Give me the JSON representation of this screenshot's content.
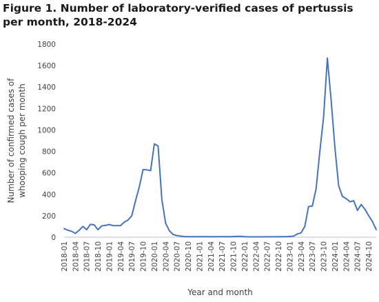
{
  "title": "Figure 1. Number of laboratory-verified cases of pertussis  per month, 2018-2024",
  "chart_data": {
    "type": "line",
    "title": "Figure 1. Number of laboratory-verified cases of pertussis  per month, 2018-2024",
    "xlabel": "Year and month",
    "ylabel_lines": [
      "Number of confirmed cases of",
      "whooping cough per month"
    ],
    "ylim": [
      0,
      1800
    ],
    "yticks": [
      0,
      200,
      400,
      600,
      800,
      1000,
      1200,
      1400,
      1600,
      1800
    ],
    "grid": false,
    "line_color": "#4472C4",
    "x_tick_labels": [
      "2018-01",
      "2018-04",
      "2018-07",
      "2018-10",
      "2019-01",
      "2019-04",
      "2019-07",
      "2019-10",
      "2020-01",
      "2020-04",
      "2020-07",
      "2020-10",
      "2021-01",
      "2021-04",
      "2021-07",
      "2021-10",
      "2022-01",
      "2022-04",
      "2022-07",
      "2022-10",
      "2023-01",
      "2023-04",
      "2023-07",
      "2023-10",
      "2024-01",
      "2024-04",
      "2024-07",
      "2024-10"
    ],
    "x": [
      "2018-01",
      "2018-02",
      "2018-03",
      "2018-04",
      "2018-05",
      "2018-06",
      "2018-07",
      "2018-08",
      "2018-09",
      "2018-10",
      "2018-11",
      "2018-12",
      "2019-01",
      "2019-02",
      "2019-03",
      "2019-04",
      "2019-05",
      "2019-06",
      "2019-07",
      "2019-08",
      "2019-09",
      "2019-10",
      "2019-11",
      "2019-12",
      "2020-01",
      "2020-02",
      "2020-03",
      "2020-04",
      "2020-05",
      "2020-06",
      "2020-07",
      "2020-08",
      "2020-09",
      "2020-10",
      "2020-11",
      "2020-12",
      "2021-01",
      "2021-02",
      "2021-03",
      "2021-04",
      "2021-05",
      "2021-06",
      "2021-07",
      "2021-08",
      "2021-09",
      "2021-10",
      "2021-11",
      "2021-12",
      "2022-01",
      "2022-02",
      "2022-03",
      "2022-04",
      "2022-05",
      "2022-06",
      "2022-07",
      "2022-08",
      "2022-09",
      "2022-10",
      "2022-11",
      "2022-12",
      "2023-01",
      "2023-02",
      "2023-03",
      "2023-04",
      "2023-05",
      "2023-06",
      "2023-07",
      "2023-08",
      "2023-09",
      "2023-10",
      "2023-11",
      "2023-12",
      "2024-01",
      "2024-02",
      "2024-03",
      "2024-04",
      "2024-05",
      "2024-06",
      "2024-07",
      "2024-08",
      "2024-09",
      "2024-10",
      "2024-11",
      "2024-12"
    ],
    "values": [
      80,
      65,
      55,
      35,
      65,
      100,
      70,
      120,
      115,
      70,
      105,
      110,
      118,
      108,
      108,
      108,
      140,
      160,
      200,
      340,
      470,
      630,
      628,
      620,
      870,
      850,
      350,
      130,
      60,
      25,
      15,
      10,
      6,
      5,
      5,
      5,
      5,
      5,
      5,
      4,
      5,
      5,
      5,
      5,
      5,
      6,
      8,
      8,
      5,
      3,
      3,
      3,
      3,
      3,
      4,
      4,
      4,
      4,
      5,
      5,
      7,
      10,
      30,
      40,
      100,
      285,
      290,
      450,
      800,
      1120,
      1670,
      1280,
      840,
      480,
      380,
      360,
      330,
      340,
      250,
      305,
      260,
      200,
      145,
      70
    ]
  }
}
